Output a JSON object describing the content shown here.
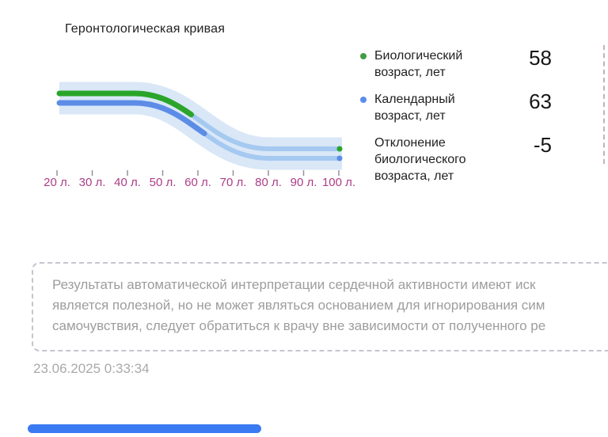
{
  "chart": {
    "title": "Геронтологическая кривая"
  },
  "chart_data": {
    "type": "line",
    "title": "Геронтологическая кривая",
    "categories": [
      "20 л.",
      "30 л.",
      "40 л.",
      "50 л.",
      "60 л.",
      "70 л.",
      "80 л.",
      "90 л.",
      "100 л."
    ],
    "x_range_years": [
      20,
      100
    ],
    "series": [
      {
        "name": "Биологический возраст, лет",
        "value": 58,
        "ends_at_year": 58,
        "color": "#2aa52a"
      },
      {
        "name": "Календарный возраст, лет",
        "value": 63,
        "ends_at_year": 63,
        "color": "#5c8ce6"
      }
    ],
    "band": {
      "color": "#d9e7f7",
      "inner_line_color": "#a5c9f0",
      "shape": "descending sigmoid band from 20 to 100 years"
    },
    "axis": {
      "tick_color": "#9a8f9f",
      "label_color": "#ac3d87"
    },
    "legend_position": "right"
  },
  "legend": {
    "items": [
      {
        "label": "Биологический возраст, лет",
        "value": "58",
        "bullet_color": "#3f9e42"
      },
      {
        "label": "Календарный возраст, лет",
        "value": "63",
        "bullet_color": "#5b8ded"
      },
      {
        "label": "Отклонение биологического возраста, лет",
        "value": "-5",
        "bullet_color": null
      }
    ]
  },
  "disclaimer": {
    "lines": [
      "Результаты автоматической интерпретации сердечной активности имеют иск",
      "является полезной, но не может являться основанием для игнорирования сим",
      "самочувствия, следует обратиться к врачу вне зависимости от полученного ре"
    ]
  },
  "footer": {
    "timestamp": "23.06.2025 0:33:34"
  },
  "bottom_bar": {
    "color": "#3a7af2"
  }
}
